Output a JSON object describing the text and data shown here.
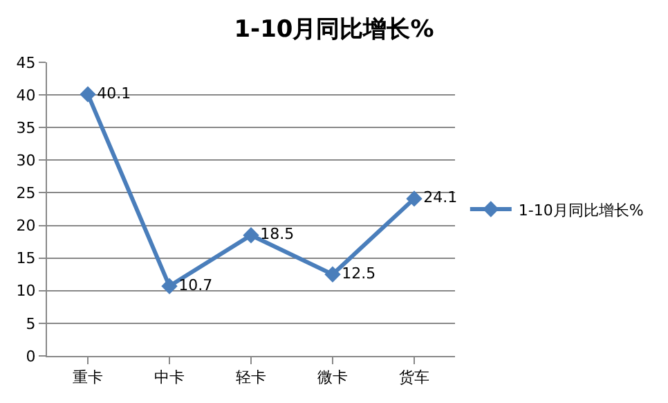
{
  "chart_data": {
    "type": "line",
    "title": "1-10月同比增长%",
    "categories": [
      "重卡",
      "中卡",
      "轻卡",
      "微卡",
      "货车"
    ],
    "series": [
      {
        "name": "1-10月同比增长%",
        "color": "#4a7ebb",
        "values": [
          40.1,
          10.7,
          18.5,
          12.5,
          24.1
        ]
      }
    ],
    "ylim": [
      0,
      45
    ],
    "yticks": [
      0,
      5,
      10,
      15,
      20,
      25,
      30,
      35,
      40,
      45
    ],
    "grid": "y",
    "legend": "right",
    "marker": "diamond",
    "line_style": "solid",
    "data_labels": true
  }
}
